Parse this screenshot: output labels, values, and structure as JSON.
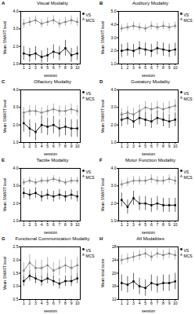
{
  "chart_data": [
    {
      "type": "line",
      "panel": "A",
      "title": "Visual Modality",
      "x_label": "session",
      "y_label": "Mean SMART level",
      "x": [
        1,
        2,
        3,
        4,
        5,
        6,
        7,
        8,
        9,
        10
      ],
      "xlim": [
        0.5,
        10.5
      ],
      "xticks": [
        1,
        2,
        3,
        4,
        5,
        6,
        7,
        8,
        9,
        10
      ],
      "ylim": [
        1,
        4
      ],
      "yticks": [
        1,
        2,
        3,
        4
      ],
      "legend": "top-right",
      "series": [
        {
          "name": "VS",
          "color": "#000000",
          "marker": "square",
          "line_style": "solid",
          "values": [
            1.6,
            1.5,
            1.6,
            1.4,
            1.5,
            1.7,
            1.6,
            1.9,
            1.5,
            1.6
          ],
          "error": [
            0.4,
            0.4,
            0.4,
            0.35,
            0.4,
            0.4,
            0.4,
            0.45,
            0.4,
            0.4
          ]
        },
        {
          "name": "MCS",
          "color": "#808080",
          "marker": "triangle",
          "line_style": "solid",
          "values": [
            3.3,
            3.4,
            3.5,
            3.3,
            3.4,
            3.5,
            3.3,
            3.4,
            3.5,
            3.4
          ],
          "error": [
            0.25,
            0.25,
            0.25,
            0.25,
            0.25,
            0.25,
            0.25,
            0.25,
            0.25,
            0.25
          ]
        }
      ]
    },
    {
      "type": "line",
      "panel": "B",
      "title": "Auditory Modality",
      "x_label": "session",
      "y_label": "Mean SMART level",
      "x": [
        1,
        2,
        3,
        4,
        5,
        6,
        7,
        8,
        9,
        10
      ],
      "xlim": [
        0.5,
        10.5
      ],
      "xticks": [
        1,
        2,
        3,
        4,
        5,
        6,
        7,
        8,
        9,
        10
      ],
      "ylim": [
        1,
        5
      ],
      "yticks": [
        1,
        2,
        3,
        4,
        5
      ],
      "legend": "top-right",
      "series": [
        {
          "name": "VS",
          "color": "#000000",
          "marker": "square",
          "line_style": "solid",
          "values": [
            2.0,
            2.1,
            2.0,
            2.2,
            2.1,
            2.0,
            2.2,
            2.1,
            2.0,
            2.1
          ],
          "error": [
            0.5,
            0.5,
            0.5,
            0.5,
            0.5,
            0.5,
            0.5,
            0.5,
            0.5,
            0.5
          ]
        },
        {
          "name": "MCS",
          "color": "#808080",
          "marker": "triangle",
          "line_style": "solid",
          "values": [
            3.7,
            3.8,
            3.9,
            3.8,
            3.7,
            3.9,
            3.8,
            3.9,
            3.8,
            3.9
          ],
          "error": [
            0.3,
            0.3,
            0.3,
            0.3,
            0.3,
            0.3,
            0.3,
            0.3,
            0.3,
            0.3
          ]
        }
      ]
    },
    {
      "type": "line",
      "panel": "C",
      "title": "Olfactory Modality",
      "x_label": "session",
      "y_label": "Mean SMART level",
      "x": [
        1,
        2,
        3,
        4,
        5,
        6,
        7,
        8,
        9,
        10
      ],
      "xlim": [
        0.5,
        10.5
      ],
      "xticks": [
        1,
        2,
        3,
        4,
        5,
        6,
        7,
        8,
        9,
        10
      ],
      "ylim": [
        1,
        4
      ],
      "yticks": [
        1,
        2,
        3,
        4
      ],
      "legend": "top-right",
      "series": [
        {
          "name": "VS",
          "color": "#000000",
          "marker": "square",
          "line_style": "solid",
          "values": [
            2.1,
            1.8,
            1.6,
            2.0,
            1.9,
            2.0,
            1.8,
            1.9,
            1.8,
            1.8
          ],
          "error": [
            0.5,
            0.5,
            0.5,
            0.5,
            0.5,
            0.5,
            0.5,
            0.5,
            0.5,
            0.5
          ]
        },
        {
          "name": "MCS",
          "color": "#808080",
          "marker": "triangle",
          "line_style": "solid",
          "values": [
            2.7,
            2.8,
            2.8,
            2.7,
            2.8,
            2.9,
            2.8,
            2.8,
            2.9,
            2.8
          ],
          "error": [
            0.3,
            0.3,
            0.3,
            0.3,
            0.3,
            0.3,
            0.3,
            0.3,
            0.3,
            0.3
          ]
        }
      ]
    },
    {
      "type": "line",
      "panel": "D",
      "title": "Gustatory Modality",
      "x_label": "session",
      "y_label": "Mean SMART level",
      "x": [
        1,
        2,
        3,
        4,
        5,
        6,
        7,
        8,
        9,
        10
      ],
      "xlim": [
        0.5,
        10.5
      ],
      "xticks": [
        1,
        2,
        3,
        4,
        5,
        6,
        7,
        8,
        9,
        10
      ],
      "ylim": [
        1,
        4
      ],
      "yticks": [
        1,
        2,
        3,
        4
      ],
      "legend": "top-right",
      "series": [
        {
          "name": "VS",
          "color": "#000000",
          "marker": "square",
          "line_style": "solid",
          "values": [
            2.3,
            2.4,
            2.2,
            2.4,
            2.3,
            2.2,
            2.4,
            2.3,
            2.2,
            2.3
          ],
          "error": [
            0.4,
            0.4,
            0.4,
            0.4,
            0.4,
            0.4,
            0.4,
            0.4,
            0.4,
            0.4
          ]
        },
        {
          "name": "MCS",
          "color": "#808080",
          "marker": "triangle",
          "line_style": "solid",
          "values": [
            2.6,
            2.7,
            2.6,
            2.8,
            3.0,
            2.9,
            3.0,
            2.9,
            3.0,
            3.1
          ],
          "error": [
            0.35,
            0.35,
            0.35,
            0.35,
            0.35,
            0.35,
            0.35,
            0.35,
            0.35,
            0.35
          ]
        }
      ]
    },
    {
      "type": "line",
      "panel": "E",
      "title": "Tactile Modality",
      "x_label": "session",
      "y_label": "Mean SMART level",
      "x": [
        1,
        2,
        3,
        4,
        5,
        6,
        7,
        8,
        9,
        10
      ],
      "xlim": [
        0.5,
        10.5
      ],
      "xticks": [
        1,
        2,
        3,
        4,
        5,
        6,
        7,
        8,
        9,
        10
      ],
      "ylim": [
        1,
        4
      ],
      "yticks": [
        1,
        2,
        3,
        4
      ],
      "legend": "top-right",
      "series": [
        {
          "name": "VS",
          "color": "#000000",
          "marker": "square",
          "line_style": "solid",
          "values": [
            2.6,
            2.5,
            2.6,
            2.4,
            2.5,
            2.4,
            2.5,
            2.4,
            2.5,
            2.4
          ],
          "error": [
            0.3,
            0.3,
            0.3,
            0.3,
            0.3,
            0.3,
            0.3,
            0.3,
            0.3,
            0.3
          ]
        },
        {
          "name": "MCS",
          "color": "#808080",
          "marker": "triangle",
          "line_style": "solid",
          "values": [
            3.2,
            3.3,
            3.2,
            3.3,
            3.3,
            3.4,
            3.3,
            3.2,
            3.3,
            3.3
          ],
          "error": [
            0.2,
            0.2,
            0.2,
            0.2,
            0.2,
            0.2,
            0.2,
            0.2,
            0.2,
            0.2
          ]
        }
      ]
    },
    {
      "type": "line",
      "panel": "F",
      "title": "Motor Function Modality",
      "x_label": "session",
      "y_label": "Mean SMART level",
      "x": [
        1,
        2,
        3,
        4,
        5,
        6,
        7,
        8,
        9,
        10
      ],
      "xlim": [
        0.5,
        10.5
      ],
      "xticks": [
        1,
        2,
        3,
        4,
        5,
        6,
        7,
        8,
        9,
        10
      ],
      "ylim": [
        1,
        4
      ],
      "yticks": [
        1,
        2,
        3,
        4
      ],
      "legend": "top-right",
      "series": [
        {
          "name": "VS",
          "color": "#000000",
          "marker": "square",
          "line_style": "solid",
          "values": [
            2.2,
            1.8,
            2.3,
            2.0,
            2.0,
            1.9,
            2.0,
            1.9,
            1.9,
            1.9
          ],
          "error": [
            0.4,
            0.4,
            0.4,
            0.4,
            0.4,
            0.4,
            0.4,
            0.4,
            0.4,
            0.4
          ]
        },
        {
          "name": "MCS",
          "color": "#808080",
          "marker": "triangle",
          "line_style": "solid",
          "values": [
            3.1,
            3.2,
            3.3,
            3.3,
            3.3,
            3.4,
            3.3,
            3.3,
            3.4,
            3.3
          ],
          "error": [
            0.25,
            0.25,
            0.25,
            0.25,
            0.25,
            0.25,
            0.25,
            0.25,
            0.25,
            0.25
          ]
        }
      ]
    },
    {
      "type": "line",
      "panel": "G",
      "title": "Functional Communication Modality",
      "x_label": "session",
      "y_label": "Mean SMART level",
      "x": [
        1,
        2,
        3,
        4,
        5,
        6,
        7,
        8,
        9,
        10
      ],
      "xlim": [
        0.5,
        10.5
      ],
      "xticks": [
        1,
        2,
        3,
        4,
        5,
        6,
        7,
        8,
        9,
        10
      ],
      "ylim": [
        0.5,
        2.5
      ],
      "yticks": [
        0.5,
        1,
        1.5,
        2,
        2.5
      ],
      "legend": "top-right",
      "series": [
        {
          "name": "VS",
          "color": "#000000",
          "marker": "square",
          "line_style": "solid",
          "values": [
            1.2,
            1.4,
            1.3,
            1.2,
            1.3,
            1.2,
            1.1,
            1.2,
            1.2,
            1.3
          ],
          "error": [
            0.2,
            0.2,
            0.2,
            0.2,
            0.2,
            0.2,
            0.2,
            0.2,
            0.2,
            0.2
          ]
        },
        {
          "name": "MCS",
          "color": "#808080",
          "marker": "triangle",
          "line_style": "solid",
          "values": [
            1.6,
            1.9,
            1.7,
            1.7,
            1.8,
            1.6,
            1.7,
            1.8,
            1.7,
            1.8
          ],
          "error": [
            0.3,
            0.3,
            0.3,
            0.3,
            0.3,
            0.3,
            0.3,
            0.3,
            0.3,
            0.3
          ]
        }
      ]
    },
    {
      "type": "line",
      "panel": "H",
      "title": "All Modalities",
      "x_label": "session",
      "y_label": "Mean total score",
      "x": [
        1,
        2,
        3,
        4,
        5,
        6,
        7,
        8,
        9,
        10
      ],
      "xlim": [
        0.5,
        10.5
      ],
      "xticks": [
        1,
        2,
        3,
        4,
        5,
        6,
        7,
        8,
        9,
        10
      ],
      "ylim": [
        12,
        28
      ],
      "yticks": [
        12,
        16,
        20,
        24,
        28
      ],
      "legend": "top-right",
      "series": [
        {
          "name": "VS",
          "color": "#000000",
          "marker": "square",
          "line_style": "solid",
          "values": [
            17,
            16.5,
            17.5,
            16,
            15.5,
            17,
            16.5,
            17,
            17,
            17.5
          ],
          "error": [
            2.5,
            2.5,
            2.5,
            2.5,
            2.5,
            2.5,
            2.5,
            2.5,
            2.5,
            2.5
          ]
        },
        {
          "name": "MCS",
          "color": "#808080",
          "marker": "triangle",
          "line_style": "solid",
          "values": [
            24,
            24.5,
            25,
            25.5,
            26,
            25,
            26,
            25.5,
            26,
            25.5
          ],
          "error": [
            1.5,
            1.5,
            1.5,
            1.5,
            1.5,
            1.5,
            1.5,
            1.5,
            1.5,
            1.5
          ]
        }
      ]
    }
  ]
}
